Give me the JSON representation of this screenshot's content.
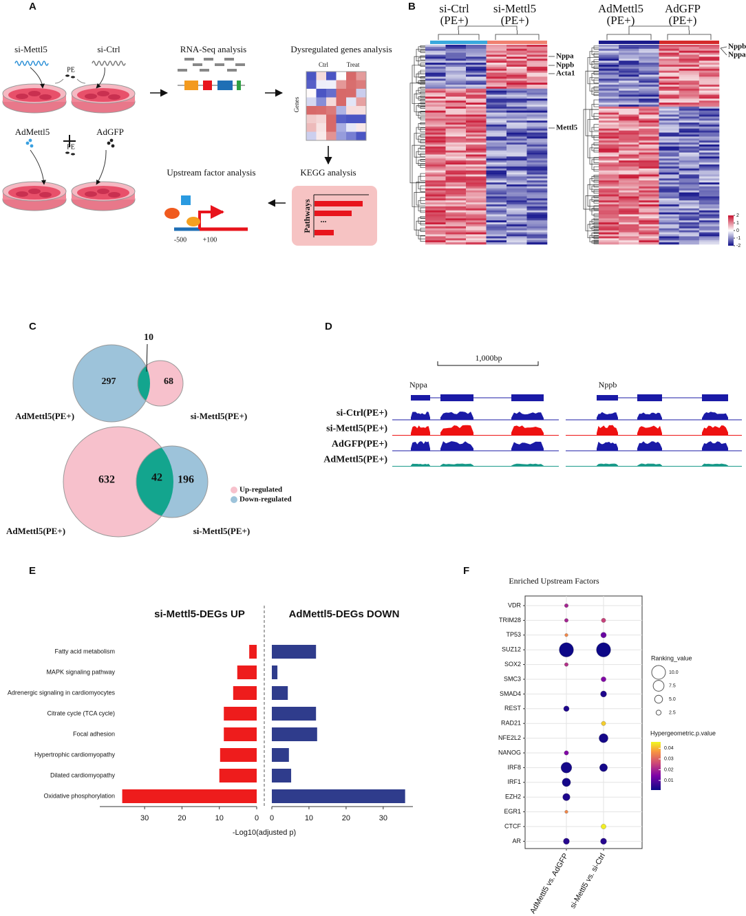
{
  "panel_labels": [
    "A",
    "B",
    "C",
    "D",
    "E",
    "F"
  ],
  "panel_a": {
    "dish_labels": [
      "si-Mettl5",
      "si-Ctrl",
      "AdMettl5",
      "AdGFP"
    ],
    "treatment": [
      "PE",
      "PE"
    ],
    "steps": [
      "RNA-Seq analysis",
      "Dysregulated genes analysis",
      "KEGG analysis",
      "Upstream factor analysis"
    ],
    "heatmap_columns": [
      "Ctrl",
      "Treat"
    ],
    "heatmap_axis": "Genes",
    "kegg_axis": "Pathways",
    "ellipsis": "...",
    "promoter": [
      "-500",
      "+100"
    ]
  },
  "panel_b": {
    "left": {
      "groups": [
        {
          "name": "si-Ctrl",
          "condition": "(PE+)"
        },
        {
          "name": "si-Mettl5",
          "condition": "(PE+)"
        }
      ],
      "genes": [
        "Nppa",
        "Nppb",
        "Acta1",
        "Mettl5"
      ]
    },
    "right": {
      "groups": [
        {
          "name": "AdMettl5",
          "condition": "(PE+)"
        },
        {
          "name": "AdGFP",
          "condition": "(PE+)"
        }
      ],
      "genes": [
        "Nppb",
        "Nppa"
      ]
    },
    "colorbar_ticks": [
      2,
      1,
      0,
      -1,
      -2
    ]
  },
  "panel_c": {
    "top": {
      "left_count": 297,
      "overlap": 10,
      "right_count": 68,
      "left_label": "AdMettl5(PE+)",
      "right_label": "si-Mettl5(PE+)"
    },
    "bottom": {
      "left_count": 632,
      "overlap": 42,
      "right_count": 196,
      "left_label": "AdMettl5(PE+)",
      "right_label": "si-Mettl5(PE+)"
    },
    "legend": [
      {
        "name": "Up-regulated",
        "color": "#f7c1cc"
      },
      {
        "name": "Down-regulated",
        "color": "#9dc3da"
      }
    ]
  },
  "panel_d": {
    "scale": "1,000bp",
    "genes": [
      "Nppa",
      "Nppb"
    ],
    "tracks": [
      {
        "name": "si-Ctrl(PE+)",
        "color": "#1a1aa6"
      },
      {
        "name": "si-Mettl5(PE+)",
        "color": "#ee1111"
      },
      {
        "name": "AdGFP(PE+)",
        "color": "#1a1aa6"
      },
      {
        "name": "AdMettl5(PE+)",
        "color": "#1a9a8a"
      }
    ]
  },
  "chart_data": [
    {
      "type": "bar",
      "categories": [
        "Fatty acid metabolism",
        "MAPK signaling pathway",
        "Adrenergic signaling in cardiomyocytes",
        "Citrate cycle (TCA cycle)",
        "Focal adhesion",
        "Hypertrophic cardiomyopathy",
        "Dilated cardiomyopathy",
        "Oxidative phosphorylation"
      ],
      "series": [
        {
          "name": "si-Mettl5-DEGs UP",
          "color": "#ee1c1c",
          "values": [
            2,
            5.2,
            6.3,
            8.8,
            8.8,
            9.8,
            10,
            36
          ],
          "xlim": [
            0,
            42
          ],
          "xticks": [
            30,
            20,
            10,
            0
          ]
        },
        {
          "name": "AdMettl5-DEGs DOWN",
          "color": "#2f3c8c",
          "values": [
            11.9,
            1.5,
            4.3,
            11.9,
            12.2,
            4.6,
            5.2,
            35.9
          ],
          "xlim": [
            0,
            38
          ],
          "xticks": [
            0,
            10,
            20,
            30
          ]
        }
      ],
      "xlabel": "-Log10(adjusted p)"
    },
    {
      "type": "bubble",
      "title": "Enriched Upstream Factors",
      "categories": [
        "VDR",
        "TRIM28",
        "TP53",
        "SUZ12",
        "SOX2",
        "SMC3",
        "SMAD4",
        "REST",
        "RAD21",
        "NFE2L2",
        "NANOG",
        "IRF8",
        "IRF1",
        "EZH2",
        "EGR1",
        "CTCF",
        "AR"
      ],
      "series": [
        {
          "name": "AdMettl5 vs. AdGFP",
          "values": [
            1.5,
            1.5,
            1,
            10.5,
            1.5,
            null,
            null,
            3,
            null,
            null,
            2,
            7.5,
            5.5,
            4.5,
            1,
            null,
            3.5
          ],
          "pvalues": [
            0.02,
            0.02,
            0.035,
            0.001,
            0.022,
            null,
            null,
            0.003,
            null,
            null,
            0.015,
            0.002,
            0.002,
            0.003,
            0.035,
            null,
            0.004
          ]
        },
        {
          "name": "si-Mettl5 vs. si-Ctrl",
          "values": [
            null,
            2,
            3,
            10.5,
            null,
            2.5,
            3.5,
            null,
            2,
            6,
            null,
            5,
            null,
            null,
            null,
            2.5,
            3.5
          ],
          "pvalues": [
            null,
            0.025,
            0.012,
            0.001,
            null,
            0.015,
            0.003,
            null,
            0.042,
            0.002,
            null,
            0.002,
            null,
            null,
            null,
            0.045,
            0.004
          ]
        }
      ],
      "size_legend": {
        "title": "Ranking_value",
        "ticks": [
          {
            "value": 10,
            "label": "10.0"
          },
          {
            "value": 7.5,
            "label": "7.5"
          },
          {
            "value": 5,
            "label": "5.0"
          },
          {
            "value": 2.5,
            "label": "2.5"
          }
        ]
      },
      "color_legend": {
        "title": "Hypergeometric.p.value",
        "clim": [
          0.001,
          0.046
        ],
        "ticks": [
          0.04,
          0.03,
          0.02,
          0.01
        ]
      }
    }
  ]
}
